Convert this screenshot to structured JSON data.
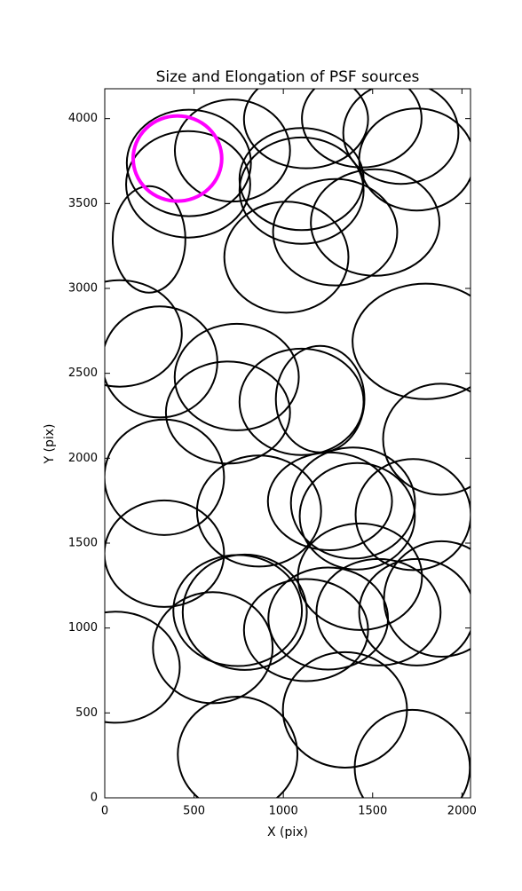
{
  "chart_data": {
    "type": "ellipse",
    "title": "Size and Elongation of PSF sources",
    "xlabel": "X (pix)",
    "ylabel": "Y (pix)",
    "xlim": [
      0,
      2048
    ],
    "ylim": [
      0,
      4176
    ],
    "xticks": [
      0,
      500,
      1000,
      1500,
      2000
    ],
    "yticks": [
      0,
      500,
      1000,
      1500,
      2000,
      2500,
      3000,
      3500,
      4000
    ],
    "series": [
      {
        "color": "#000000",
        "linewidth": 2,
        "x": [
          715,
          1127,
          1439,
          1658,
          1747,
          471,
          467,
          1102,
          1102,
          1290,
          1514,
          1017,
          248,
          84,
          308,
          739,
          690,
          1102,
          1206,
          1797,
          1881,
          333,
          333,
          864,
          1261,
          1390,
          1414,
          1727,
          1747,
          1886,
          1429,
          744,
          784,
          1127,
          1251,
          1533,
          605,
          60,
          744,
          1345,
          1722
        ],
        "y": [
          3812,
          3995,
          4000,
          3916,
          3759,
          3739,
          3613,
          3644,
          3576,
          3331,
          3388,
          3184,
          3289,
          2735,
          2567,
          2478,
          2269,
          2332,
          2348,
          2688,
          2112,
          1888,
          1438,
          1689,
          1746,
          1736,
          1658,
          1668,
          1093,
          1171,
          1302,
          1103,
          1093,
          988,
          1056,
          1093,
          884,
          769,
          256,
          518,
          178
        ],
        "width": [
          645,
          695,
          670,
          645,
          645,
          695,
          695,
          695,
          695,
          695,
          720,
          695,
          407,
          695,
          645,
          695,
          695,
          695,
          496,
          819,
          645,
          670,
          670,
          695,
          695,
          695,
          645,
          645,
          645,
          645,
          695,
          720,
          695,
          695,
          670,
          695,
          670,
          720,
          670,
          695,
          645
        ],
        "height": [
          601,
          575,
          575,
          601,
          601,
          627,
          627,
          601,
          627,
          627,
          627,
          654,
          627,
          627,
          654,
          627,
          601,
          627,
          627,
          680,
          654,
          680,
          627,
          654,
          575,
          654,
          627,
          654,
          627,
          680,
          627,
          654,
          680,
          601,
          601,
          627,
          654,
          654,
          680,
          680,
          680
        ]
      },
      {
        "color": "#ff00ff",
        "linewidth": 4,
        "x": [
          407
        ],
        "y": [
          3765
        ],
        "width": [
          496
        ],
        "height": [
          502
        ]
      }
    ]
  }
}
